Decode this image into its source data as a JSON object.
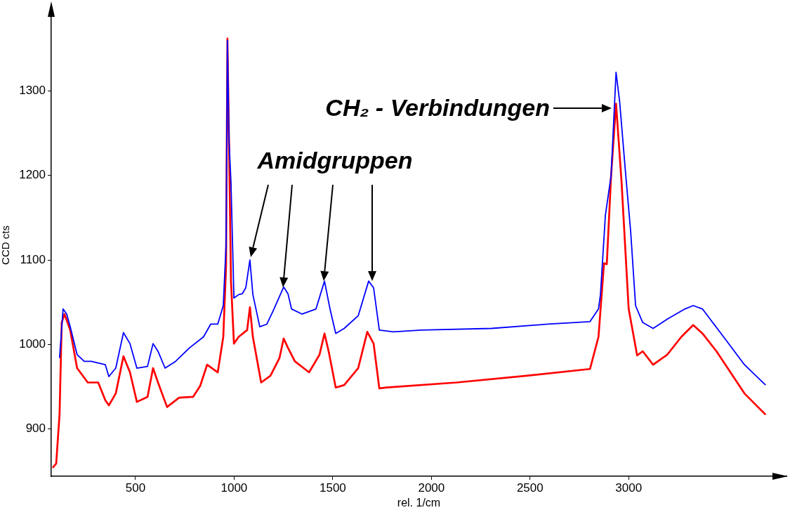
{
  "chart_data": {
    "type": "line",
    "xlabel": "rel. 1/cm",
    "ylabel": "CCD cts",
    "xlim": [
      73,
      3800
    ],
    "ylim": [
      844,
      1391
    ],
    "xticks": [
      500,
      1000,
      1500,
      2000,
      2500,
      3000
    ],
    "yticks": [
      900,
      1000,
      1100,
      1200,
      1300
    ],
    "grid": false,
    "legend": false,
    "marker": "none",
    "line_style": "solid",
    "annotations": [
      "Amidgruppen",
      {
        "text": "CH₂ - Verbindungen",
        "x": 2922,
        "y": 1280
      }
    ],
    "series": [
      {
        "color": "#0000ff",
        "x": [
          115,
          133,
          151,
          169,
          204,
          240,
          276,
          347,
          365,
          400,
          439,
          472,
          507,
          561,
          589,
          614,
          650,
          703,
          774,
          845,
          881,
          917,
          945,
          959,
          966,
          974,
          984,
          999,
          1023,
          1041,
          1059,
          1080,
          1095,
          1130,
          1166,
          1202,
          1251,
          1273,
          1291,
          1344,
          1415,
          1458,
          1486,
          1515,
          1558,
          1629,
          1682,
          1707,
          1736,
          1807,
          1949,
          2305,
          2590,
          2804,
          2847,
          2857,
          2882,
          2911,
          2936,
          2954,
          2982,
          3010,
          3035,
          3071,
          3124,
          3196,
          3285,
          3327,
          3374,
          3481,
          3587,
          3694
        ],
        "values": [
          984,
          1042,
          1036,
          1021,
          988,
          980,
          980,
          976,
          962,
          972,
          1014,
          1001,
          972,
          974,
          1001,
          992,
          972,
          980,
          996,
          1009,
          1024,
          1024,
          1046,
          1117,
          1360,
          1242,
          1192,
          1055,
          1059,
          1060,
          1067,
          1100,
          1059,
          1021,
          1024,
          1042,
          1068,
          1060,
          1042,
          1036,
          1042,
          1075,
          1042,
          1013,
          1019,
          1034,
          1075,
          1067,
          1017,
          1015,
          1017,
          1019,
          1024,
          1027,
          1042,
          1059,
          1153,
          1200,
          1322,
          1288,
          1209,
          1134,
          1046,
          1026,
          1019,
          1030,
          1042,
          1046,
          1042,
          1009,
          976,
          952
        ]
      },
      {
        "color": "#ff0000",
        "x": [
          80,
          98,
          115,
          126,
          140,
          169,
          204,
          258,
          311,
          347,
          365,
          400,
          439,
          472,
          507,
          561,
          589,
          614,
          660,
          721,
          792,
          828,
          863,
          917,
          945,
          959,
          966,
          974,
          984,
          999,
          1023,
          1066,
          1080,
          1095,
          1137,
          1184,
          1230,
          1251,
          1273,
          1308,
          1380,
          1433,
          1458,
          1479,
          1515,
          1558,
          1629,
          1675,
          1707,
          1736,
          1771,
          2127,
          2483,
          2804,
          2847,
          2875,
          2889,
          2911,
          2936,
          2964,
          3000,
          3043,
          3071,
          3124,
          3196,
          3267,
          3327,
          3374,
          3445,
          3516,
          3587,
          3694
        ],
        "values": [
          854,
          859,
          917,
          1026,
          1036,
          1017,
          972,
          955,
          955,
          934,
          928,
          942,
          986,
          967,
          932,
          938,
          972,
          955,
          926,
          937,
          938,
          951,
          976,
          967,
          1009,
          1092,
          1362,
          1242,
          1075,
          1001,
          1009,
          1017,
          1044,
          1009,
          955,
          963,
          984,
          1007,
          996,
          980,
          967,
          988,
          1013,
          992,
          949,
          952,
          972,
          1015,
          1001,
          948,
          949,
          955,
          963,
          971,
          1009,
          1096,
          1095,
          1200,
          1285,
          1192,
          1042,
          987,
          992,
          976,
          988,
          1009,
          1023,
          1013,
          992,
          967,
          942,
          917
        ]
      }
    ]
  }
}
